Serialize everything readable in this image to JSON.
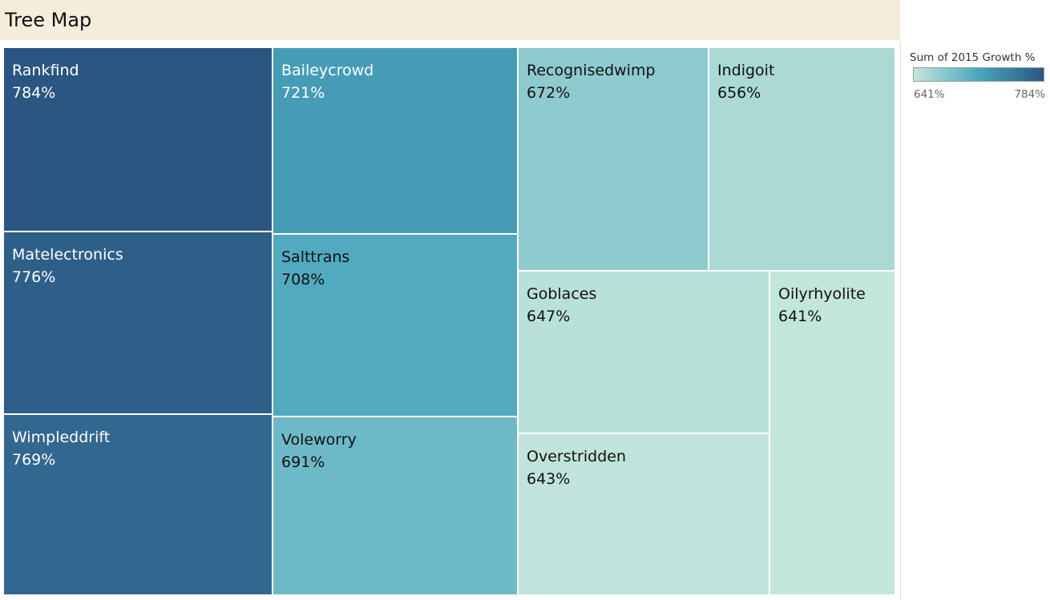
{
  "header": {
    "title": "Tree Map"
  },
  "chart_data": {
    "type": "treemap",
    "title": "Tree Map",
    "measure": "Sum of 2015 Growth %",
    "color_range": {
      "min": 641,
      "max": 784
    },
    "colors": {
      "low": "#c3e6dc",
      "mid": "#4aa6be",
      "high": "#2b5682",
      "text_dark": "#111111",
      "text_light": "#ffffff"
    },
    "items": [
      {
        "name": "Rankfind",
        "value": 784,
        "label": "784%"
      },
      {
        "name": "Matelectronics",
        "value": 776,
        "label": "776%"
      },
      {
        "name": "Wimpleddrift",
        "value": 769,
        "label": "769%"
      },
      {
        "name": "Baileycrowd",
        "value": 721,
        "label": "721%"
      },
      {
        "name": "Salttrans",
        "value": 708,
        "label": "708%"
      },
      {
        "name": "Voleworry",
        "value": 691,
        "label": "691%"
      },
      {
        "name": "Recognisedwimp",
        "value": 672,
        "label": "672%"
      },
      {
        "name": "Indigoit",
        "value": 656,
        "label": "656%"
      },
      {
        "name": "Goblaces",
        "value": 647,
        "label": "647%"
      },
      {
        "name": "Overstridden",
        "value": 643,
        "label": "643%"
      },
      {
        "name": "Oilyrhyolite",
        "value": 641,
        "label": "641%"
      }
    ]
  },
  "legend": {
    "title": "Sum of 2015 Growth %",
    "min_label": "641%",
    "max_label": "784%"
  }
}
